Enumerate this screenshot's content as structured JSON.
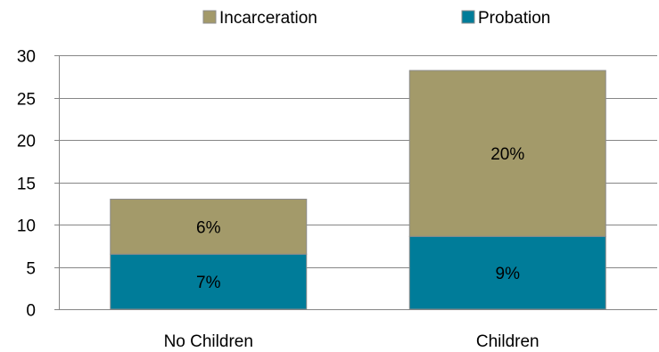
{
  "chart_data": {
    "type": "bar",
    "stacked": true,
    "categories": [
      "No Children",
      "Children"
    ],
    "series": [
      {
        "name": "Probation",
        "values": [
          6.5,
          8.6
        ],
        "labels": [
          "7%",
          "9%"
        ],
        "color": "#007C99"
      },
      {
        "name": "Incarceration",
        "values": [
          6.5,
          19.6
        ],
        "labels": [
          "6%",
          "20%"
        ],
        "color": "#A39A6A"
      }
    ],
    "legend_order": [
      "Incarceration",
      "Probation"
    ],
    "legend_position": "top",
    "ylim": [
      0,
      30
    ],
    "yticks": [
      0,
      5,
      10,
      15,
      20,
      25,
      30
    ],
    "grid": true,
    "title": "",
    "xlabel": "",
    "ylabel": ""
  }
}
